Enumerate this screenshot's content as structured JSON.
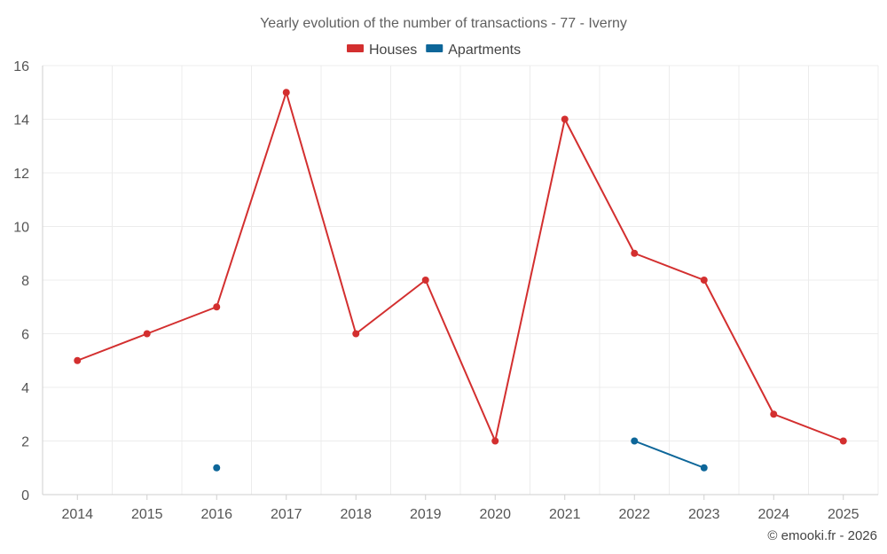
{
  "chart_data": {
    "type": "line",
    "title": "Yearly evolution of the number of transactions - 77 - Iverny",
    "categories": [
      "2014",
      "2015",
      "2016",
      "2017",
      "2018",
      "2019",
      "2020",
      "2021",
      "2022",
      "2023",
      "2024",
      "2025"
    ],
    "ylim": [
      0,
      16
    ],
    "yticks": [
      "0",
      "2",
      "4",
      "6",
      "8",
      "10",
      "12",
      "14",
      "16"
    ],
    "grid": true,
    "legend_position": "top-center",
    "series": [
      {
        "name": "Houses",
        "color": "#d32f2f",
        "values": [
          5,
          6,
          7,
          15,
          6,
          8,
          2,
          14,
          9,
          8,
          3,
          2
        ]
      },
      {
        "name": "Apartments",
        "color": "#0d6699",
        "values": [
          null,
          null,
          1,
          null,
          null,
          null,
          null,
          null,
          2,
          1,
          null,
          null
        ]
      }
    ]
  },
  "credit": "© emooki.fr - 2026"
}
